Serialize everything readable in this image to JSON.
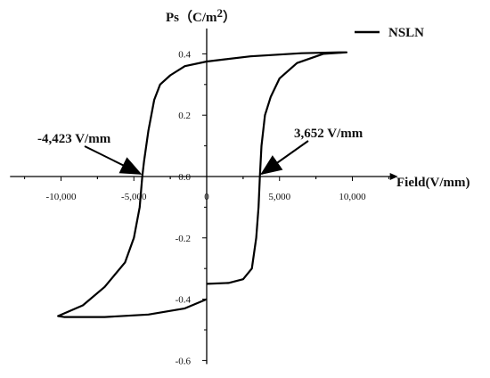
{
  "chart_data": {
    "type": "line",
    "title": "",
    "ylabel_main": "Ps（C/m",
    "ylabel_sup": "2",
    "ylabel_close": "）",
    "xlabel": "Field(V/mm)",
    "xlim": [
      -13500,
      12700
    ],
    "ylim": [
      -0.6,
      0.5
    ],
    "x_ticks": [
      -10000,
      -5000,
      0,
      5000,
      10000
    ],
    "x_tick_labels": [
      "-10,000",
      "-5,000",
      "0",
      "5,000",
      "10,000"
    ],
    "y_ticks": [
      0.4,
      0.2,
      0.0,
      -0.2,
      -0.4,
      -0.6
    ],
    "y_tick_labels": [
      "0.4",
      "0.2",
      "0.0",
      "-0.2",
      "-0.4",
      "-0.6"
    ],
    "grid": false,
    "legend_position": "top-right",
    "series": [
      {
        "name": "NSLN",
        "color": "#000000",
        "points": [
          [
            0,
            -0.35
          ],
          [
            1500,
            -0.347
          ],
          [
            2500,
            -0.335
          ],
          [
            3100,
            -0.3
          ],
          [
            3400,
            -0.2
          ],
          [
            3560,
            -0.1
          ],
          [
            3652,
            0.0
          ],
          [
            3760,
            0.1
          ],
          [
            4000,
            0.2
          ],
          [
            4400,
            0.26
          ],
          [
            5000,
            0.32
          ],
          [
            6200,
            0.37
          ],
          [
            8000,
            0.4
          ],
          [
            9600,
            0.405
          ],
          [
            9100,
            0.405
          ],
          [
            6500,
            0.402
          ],
          [
            3000,
            0.392
          ],
          [
            0,
            0.375
          ],
          [
            -1500,
            0.36
          ],
          [
            -2500,
            0.33
          ],
          [
            -3200,
            0.3
          ],
          [
            -3600,
            0.25
          ],
          [
            -4000,
            0.15
          ],
          [
            -4300,
            0.05
          ],
          [
            -4423,
            0.0
          ],
          [
            -4600,
            -0.1
          ],
          [
            -5000,
            -0.2
          ],
          [
            -5600,
            -0.28
          ],
          [
            -7000,
            -0.36
          ],
          [
            -8500,
            -0.42
          ],
          [
            -10200,
            -0.455
          ],
          [
            -9800,
            -0.458
          ],
          [
            -7000,
            -0.458
          ],
          [
            -4000,
            -0.45
          ],
          [
            -1500,
            -0.43
          ],
          [
            0,
            -0.4
          ]
        ]
      }
    ],
    "annotations": [
      {
        "text": "-4,423 V/mm",
        "x": -4423,
        "y": 0.0
      },
      {
        "text": "3,652 V/mm",
        "x": 3652,
        "y": 0.0
      }
    ]
  }
}
